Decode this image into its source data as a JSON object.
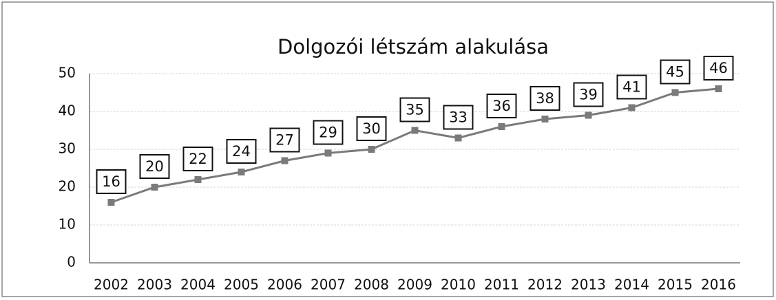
{
  "chart_data": {
    "type": "line",
    "title": "Dolgozói létszám alakulása",
    "categories": [
      "2002",
      "2003",
      "2004",
      "2005",
      "2006",
      "2007",
      "2008",
      "2009",
      "2010",
      "2011",
      "2012",
      "2013",
      "2014",
      "2015",
      "2016"
    ],
    "values": [
      16,
      20,
      22,
      24,
      27,
      29,
      30,
      35,
      33,
      36,
      38,
      39,
      41,
      45,
      46
    ],
    "color": "#7a7a7a",
    "ylim": [
      0,
      50
    ],
    "yticks": [
      0,
      10,
      20,
      30,
      40,
      50
    ],
    "grid": true
  }
}
